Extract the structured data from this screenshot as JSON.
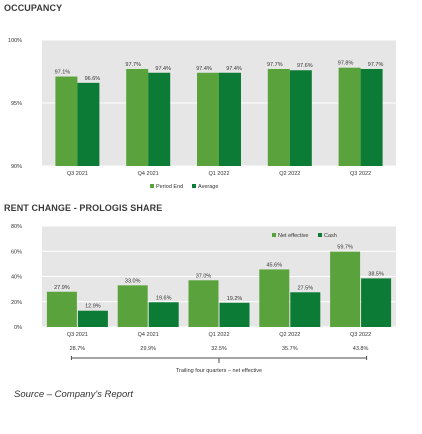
{
  "colors": {
    "period_end": "#5aa33c",
    "average": "#0b7b35",
    "net_effective": "#5aa33c",
    "cash": "#0b7b35",
    "plot_bg": "#e6e6e6",
    "grid": "#ffffff"
  },
  "chart_data": [
    {
      "type": "bar",
      "title": "OCCUPANCY",
      "categories": [
        "Q3 2021",
        "Q4 2021",
        "Q1 2022",
        "Q2 2022",
        "Q3 2022"
      ],
      "ylim": [
        90,
        100
      ],
      "y_ticks": [
        "90%",
        "95%",
        "100%"
      ],
      "y_tick_values": [
        90,
        95,
        100
      ],
      "grid": true,
      "legend_position": "bottom",
      "series": [
        {
          "name": "Period End",
          "values": [
            97.1,
            97.7,
            97.4,
            97.7,
            97.8
          ],
          "labels": [
            "97.1%",
            "97.7%",
            "97.4%",
            "97.7%",
            "97.8%"
          ]
        },
        {
          "name": "Average",
          "values": [
            96.6,
            97.4,
            97.4,
            97.6,
            97.7
          ],
          "labels": [
            "96.6%",
            "97.4%",
            "97.4%",
            "97.6%",
            "97.7%"
          ]
        }
      ]
    },
    {
      "type": "bar",
      "title": "RENT CHANGE - PROLOGIS SHARE",
      "categories": [
        "Q3 2021",
        "Q4 2021",
        "Q1 2022",
        "Q2 2022",
        "Q3 2022"
      ],
      "ylim": [
        0,
        80
      ],
      "y_ticks": [
        "0%",
        "20%",
        "40%",
        "60%",
        "80%"
      ],
      "y_tick_values": [
        0,
        20,
        40,
        60,
        80
      ],
      "grid": true,
      "legend_position": "top-right",
      "series": [
        {
          "name": "Net effective",
          "values": [
            27.9,
            33.0,
            37.0,
            45.6,
            59.7
          ],
          "labels": [
            "27.9%",
            "33.0%",
            "37.0%",
            "45.6%",
            "59.7%"
          ]
        },
        {
          "name": "Cash",
          "values": [
            12.9,
            19.6,
            19.2,
            27.5,
            38.5
          ],
          "labels": [
            "12.9%",
            "19.6%",
            "19.2%",
            "27.5%",
            "38.5%"
          ]
        }
      ],
      "trailing_values": [
        "28.7%",
        "29.9%",
        "32.5%",
        "35.7%",
        "43.8%"
      ],
      "trailing_label": "Trailing four quarters – net effective"
    }
  ],
  "source": "Source – Company's Report"
}
